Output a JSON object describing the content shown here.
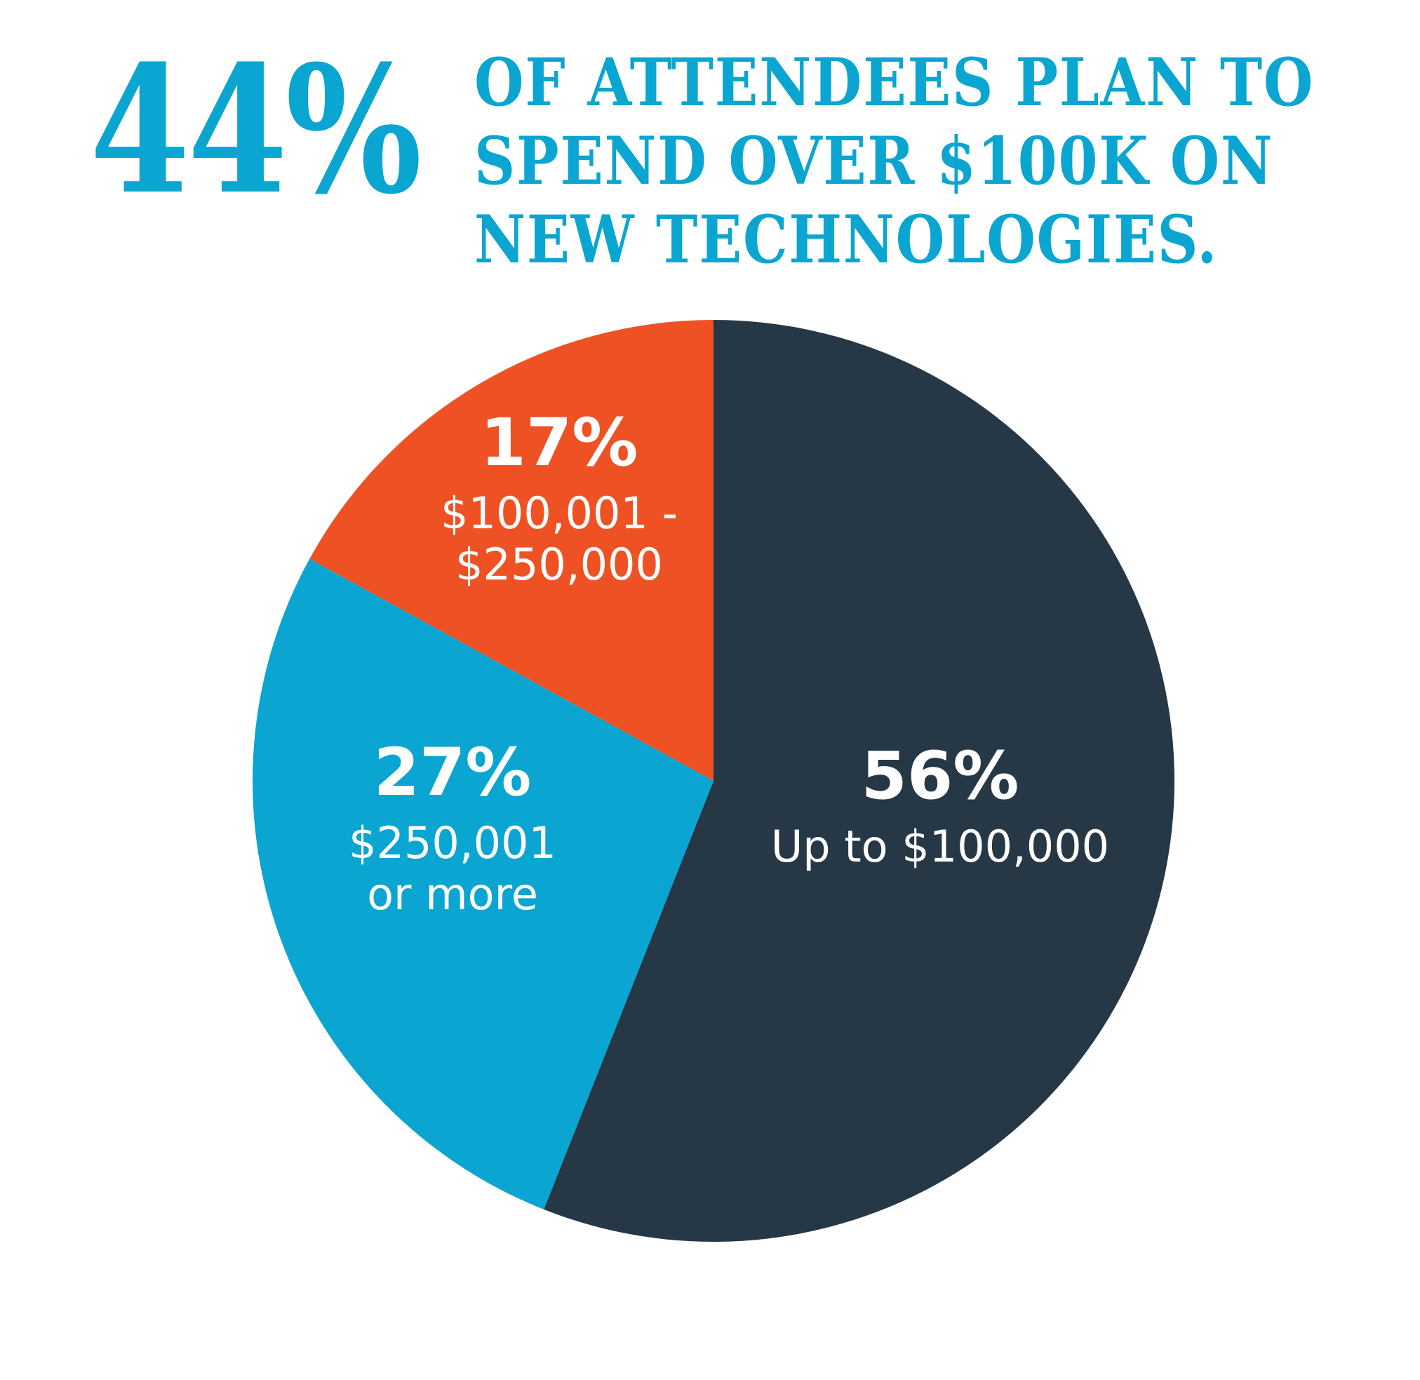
{
  "headline": {
    "stat": "44%",
    "lines": [
      "OF ATTENDEES PLAN TO",
      "SPEND OVER $100K ON",
      "NEW TECHNOLOGIES."
    ]
  },
  "colors": {
    "accent": "#0aa5d0",
    "up_to_100k": "#263746",
    "range_100k_250k": "#ee5224",
    "over_250k": "#0aa5d0",
    "text_on_slice": "#ffffff"
  },
  "chart_data": {
    "type": "pie",
    "title": "",
    "slices": [
      {
        "pct_label": "56%",
        "value": 56,
        "label_lines": [
          "Up to $100,000"
        ],
        "color": "#263746"
      },
      {
        "pct_label": "27%",
        "value": 27,
        "label_lines": [
          "$250,001",
          "or more"
        ],
        "color": "#0aa5d0"
      },
      {
        "pct_label": "17%",
        "value": 17,
        "label_lines": [
          "$100,001 -",
          "$250,000"
        ],
        "color": "#ee5224"
      }
    ]
  }
}
